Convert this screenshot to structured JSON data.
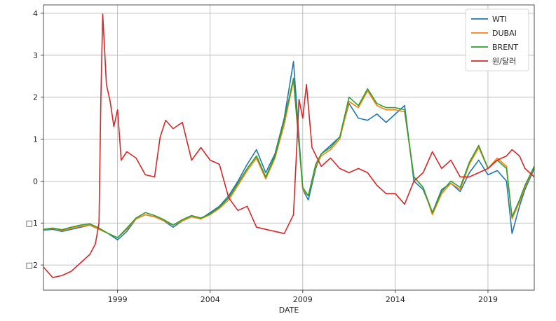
{
  "chart_data": {
    "type": "line",
    "title": "",
    "xlabel": "DATE",
    "ylabel": "",
    "xlim": [
      1995.0,
      2021.5
    ],
    "ylim": [
      -2.6,
      4.2
    ],
    "grid": true,
    "legend_position": "top-right",
    "x_ticks": [
      {
        "value": 1999,
        "label": "1999"
      },
      {
        "value": 2004,
        "label": "2004"
      },
      {
        "value": 2009,
        "label": "2009"
      },
      {
        "value": 2014,
        "label": "2014"
      },
      {
        "value": 2019,
        "label": "2019"
      }
    ],
    "y_ticks": [
      {
        "value": 4,
        "label": "4"
      },
      {
        "value": 3,
        "label": "3"
      },
      {
        "value": 2,
        "label": "2"
      },
      {
        "value": 1,
        "label": "1"
      },
      {
        "value": 0,
        "label": "0"
      },
      {
        "value": -1,
        "label": "□1"
      },
      {
        "value": -2,
        "label": "□2"
      }
    ],
    "series": [
      {
        "name": "WTI",
        "color": "#1f77b4",
        "points": [
          [
            1995.0,
            -1.17
          ],
          [
            1995.5,
            -1.15
          ],
          [
            1996.0,
            -1.2
          ],
          [
            1996.5,
            -1.15
          ],
          [
            1997.0,
            -1.1
          ],
          [
            1997.5,
            -1.05
          ],
          [
            1998.0,
            -1.15
          ],
          [
            1998.5,
            -1.25
          ],
          [
            1999.0,
            -1.4
          ],
          [
            1999.5,
            -1.2
          ],
          [
            2000.0,
            -0.9
          ],
          [
            2000.5,
            -0.8
          ],
          [
            2001.0,
            -0.85
          ],
          [
            2001.5,
            -0.95
          ],
          [
            2002.0,
            -1.1
          ],
          [
            2002.5,
            -0.95
          ],
          [
            2003.0,
            -0.85
          ],
          [
            2003.5,
            -0.9
          ],
          [
            2004.0,
            -0.75
          ],
          [
            2004.5,
            -0.6
          ],
          [
            2005.0,
            -0.35
          ],
          [
            2005.5,
            0.0
          ],
          [
            2006.0,
            0.4
          ],
          [
            2006.5,
            0.75
          ],
          [
            2007.0,
            0.2
          ],
          [
            2007.5,
            0.65
          ],
          [
            2008.0,
            1.5
          ],
          [
            2008.5,
            2.85
          ],
          [
            2009.0,
            -0.2
          ],
          [
            2009.3,
            -0.45
          ],
          [
            2009.7,
            0.3
          ],
          [
            2010.0,
            0.65
          ],
          [
            2010.5,
            0.85
          ],
          [
            2011.0,
            1.05
          ],
          [
            2011.5,
            1.85
          ],
          [
            2012.0,
            1.5
          ],
          [
            2012.5,
            1.45
          ],
          [
            2013.0,
            1.6
          ],
          [
            2013.5,
            1.4
          ],
          [
            2014.0,
            1.6
          ],
          [
            2014.5,
            1.8
          ],
          [
            2015.0,
            0.0
          ],
          [
            2015.5,
            -0.2
          ],
          [
            2016.0,
            -0.75
          ],
          [
            2016.5,
            -0.2
          ],
          [
            2017.0,
            -0.05
          ],
          [
            2017.5,
            -0.25
          ],
          [
            2018.0,
            0.2
          ],
          [
            2018.5,
            0.5
          ],
          [
            2019.0,
            0.15
          ],
          [
            2019.5,
            0.25
          ],
          [
            2020.0,
            0.0
          ],
          [
            2020.3,
            -1.25
          ],
          [
            2020.7,
            -0.6
          ],
          [
            2021.0,
            -0.2
          ],
          [
            2021.5,
            0.3
          ]
        ]
      },
      {
        "name": "DUBAI",
        "color": "#ff7f0e",
        "points": [
          [
            1995.0,
            -1.16
          ],
          [
            1995.5,
            -1.13
          ],
          [
            1996.0,
            -1.18
          ],
          [
            1996.5,
            -1.13
          ],
          [
            1997.0,
            -1.08
          ],
          [
            1997.5,
            -1.05
          ],
          [
            1998.0,
            -1.15
          ],
          [
            1998.5,
            -1.25
          ],
          [
            1999.0,
            -1.35
          ],
          [
            1999.5,
            -1.15
          ],
          [
            2000.0,
            -0.9
          ],
          [
            2000.5,
            -0.8
          ],
          [
            2001.0,
            -0.85
          ],
          [
            2001.5,
            -0.95
          ],
          [
            2002.0,
            -1.05
          ],
          [
            2002.5,
            -0.95
          ],
          [
            2003.0,
            -0.85
          ],
          [
            2003.5,
            -0.9
          ],
          [
            2004.0,
            -0.8
          ],
          [
            2004.5,
            -0.65
          ],
          [
            2005.0,
            -0.45
          ],
          [
            2005.5,
            -0.1
          ],
          [
            2006.0,
            0.25
          ],
          [
            2006.5,
            0.55
          ],
          [
            2007.0,
            0.05
          ],
          [
            2007.5,
            0.55
          ],
          [
            2008.0,
            1.35
          ],
          [
            2008.5,
            2.4
          ],
          [
            2009.0,
            -0.2
          ],
          [
            2009.3,
            -0.35
          ],
          [
            2009.7,
            0.35
          ],
          [
            2010.0,
            0.6
          ],
          [
            2010.5,
            0.75
          ],
          [
            2011.0,
            1.0
          ],
          [
            2011.5,
            1.9
          ],
          [
            2012.0,
            1.75
          ],
          [
            2012.5,
            2.15
          ],
          [
            2013.0,
            1.8
          ],
          [
            2013.5,
            1.7
          ],
          [
            2014.0,
            1.7
          ],
          [
            2014.5,
            1.65
          ],
          [
            2015.0,
            0.1
          ],
          [
            2015.5,
            -0.15
          ],
          [
            2016.0,
            -0.8
          ],
          [
            2016.5,
            -0.3
          ],
          [
            2017.0,
            -0.05
          ],
          [
            2017.5,
            -0.2
          ],
          [
            2018.0,
            0.4
          ],
          [
            2018.5,
            0.8
          ],
          [
            2019.0,
            0.3
          ],
          [
            2019.5,
            0.55
          ],
          [
            2020.0,
            0.35
          ],
          [
            2020.3,
            -0.9
          ],
          [
            2020.7,
            -0.5
          ],
          [
            2021.0,
            -0.15
          ],
          [
            2021.5,
            0.35
          ]
        ]
      },
      {
        "name": "BRENT",
        "color": "#2ca02c",
        "points": [
          [
            1995.0,
            -1.15
          ],
          [
            1995.5,
            -1.12
          ],
          [
            1996.0,
            -1.16
          ],
          [
            1996.5,
            -1.1
          ],
          [
            1997.0,
            -1.05
          ],
          [
            1997.5,
            -1.02
          ],
          [
            1998.0,
            -1.12
          ],
          [
            1998.5,
            -1.25
          ],
          [
            1999.0,
            -1.35
          ],
          [
            1999.5,
            -1.12
          ],
          [
            2000.0,
            -0.88
          ],
          [
            2000.5,
            -0.75
          ],
          [
            2001.0,
            -0.82
          ],
          [
            2001.5,
            -0.92
          ],
          [
            2002.0,
            -1.05
          ],
          [
            2002.5,
            -0.92
          ],
          [
            2003.0,
            -0.82
          ],
          [
            2003.5,
            -0.88
          ],
          [
            2004.0,
            -0.78
          ],
          [
            2004.5,
            -0.62
          ],
          [
            2005.0,
            -0.4
          ],
          [
            2005.5,
            -0.05
          ],
          [
            2006.0,
            0.3
          ],
          [
            2006.5,
            0.6
          ],
          [
            2007.0,
            0.1
          ],
          [
            2007.5,
            0.6
          ],
          [
            2008.0,
            1.45
          ],
          [
            2008.5,
            2.45
          ],
          [
            2009.0,
            -0.15
          ],
          [
            2009.3,
            -0.35
          ],
          [
            2009.7,
            0.4
          ],
          [
            2010.0,
            0.65
          ],
          [
            2010.5,
            0.8
          ],
          [
            2011.0,
            1.05
          ],
          [
            2011.5,
            2.0
          ],
          [
            2012.0,
            1.8
          ],
          [
            2012.5,
            2.2
          ],
          [
            2013.0,
            1.85
          ],
          [
            2013.5,
            1.75
          ],
          [
            2014.0,
            1.75
          ],
          [
            2014.5,
            1.7
          ],
          [
            2015.0,
            0.1
          ],
          [
            2015.5,
            -0.15
          ],
          [
            2016.0,
            -0.75
          ],
          [
            2016.5,
            -0.25
          ],
          [
            2017.0,
            0.0
          ],
          [
            2017.5,
            -0.15
          ],
          [
            2018.0,
            0.45
          ],
          [
            2018.5,
            0.85
          ],
          [
            2019.0,
            0.3
          ],
          [
            2019.5,
            0.5
          ],
          [
            2020.0,
            0.3
          ],
          [
            2020.3,
            -0.85
          ],
          [
            2020.7,
            -0.45
          ],
          [
            2021.0,
            -0.1
          ],
          [
            2021.5,
            0.35
          ]
        ]
      },
      {
        "name": "원/달러",
        "color": "#d62728",
        "points": [
          [
            1995.0,
            -2.05
          ],
          [
            1995.5,
            -2.3
          ],
          [
            1996.0,
            -2.25
          ],
          [
            1996.5,
            -2.15
          ],
          [
            1997.0,
            -1.95
          ],
          [
            1997.5,
            -1.75
          ],
          [
            1997.8,
            -1.5
          ],
          [
            1998.0,
            -1.0
          ],
          [
            1998.1,
            2.0
          ],
          [
            1998.2,
            3.98
          ],
          [
            1998.4,
            2.3
          ],
          [
            1998.6,
            1.9
          ],
          [
            1998.8,
            1.3
          ],
          [
            1999.0,
            1.7
          ],
          [
            1999.2,
            0.5
          ],
          [
            1999.5,
            0.7
          ],
          [
            2000.0,
            0.55
          ],
          [
            2000.5,
            0.15
          ],
          [
            2001.0,
            0.1
          ],
          [
            2001.3,
            1.05
          ],
          [
            2001.6,
            1.45
          ],
          [
            2002.0,
            1.25
          ],
          [
            2002.5,
            1.4
          ],
          [
            2003.0,
            0.5
          ],
          [
            2003.5,
            0.8
          ],
          [
            2004.0,
            0.5
          ],
          [
            2004.5,
            0.4
          ],
          [
            2005.0,
            -0.4
          ],
          [
            2005.5,
            -0.7
          ],
          [
            2006.0,
            -0.6
          ],
          [
            2006.5,
            -1.1
          ],
          [
            2007.0,
            -1.15
          ],
          [
            2007.5,
            -1.2
          ],
          [
            2008.0,
            -1.25
          ],
          [
            2008.5,
            -0.8
          ],
          [
            2008.8,
            1.95
          ],
          [
            2009.0,
            1.5
          ],
          [
            2009.2,
            2.3
          ],
          [
            2009.5,
            0.8
          ],
          [
            2010.0,
            0.35
          ],
          [
            2010.5,
            0.55
          ],
          [
            2011.0,
            0.3
          ],
          [
            2011.5,
            0.2
          ],
          [
            2012.0,
            0.3
          ],
          [
            2012.5,
            0.2
          ],
          [
            2013.0,
            -0.1
          ],
          [
            2013.5,
            -0.3
          ],
          [
            2014.0,
            -0.3
          ],
          [
            2014.5,
            -0.55
          ],
          [
            2015.0,
            0.0
          ],
          [
            2015.5,
            0.2
          ],
          [
            2016.0,
            0.7
          ],
          [
            2016.5,
            0.3
          ],
          [
            2017.0,
            0.5
          ],
          [
            2017.5,
            0.1
          ],
          [
            2018.0,
            0.1
          ],
          [
            2018.5,
            0.2
          ],
          [
            2019.0,
            0.3
          ],
          [
            2019.5,
            0.5
          ],
          [
            2020.0,
            0.6
          ],
          [
            2020.3,
            0.75
          ],
          [
            2020.7,
            0.6
          ],
          [
            2021.0,
            0.3
          ],
          [
            2021.5,
            0.1
          ]
        ]
      }
    ]
  }
}
